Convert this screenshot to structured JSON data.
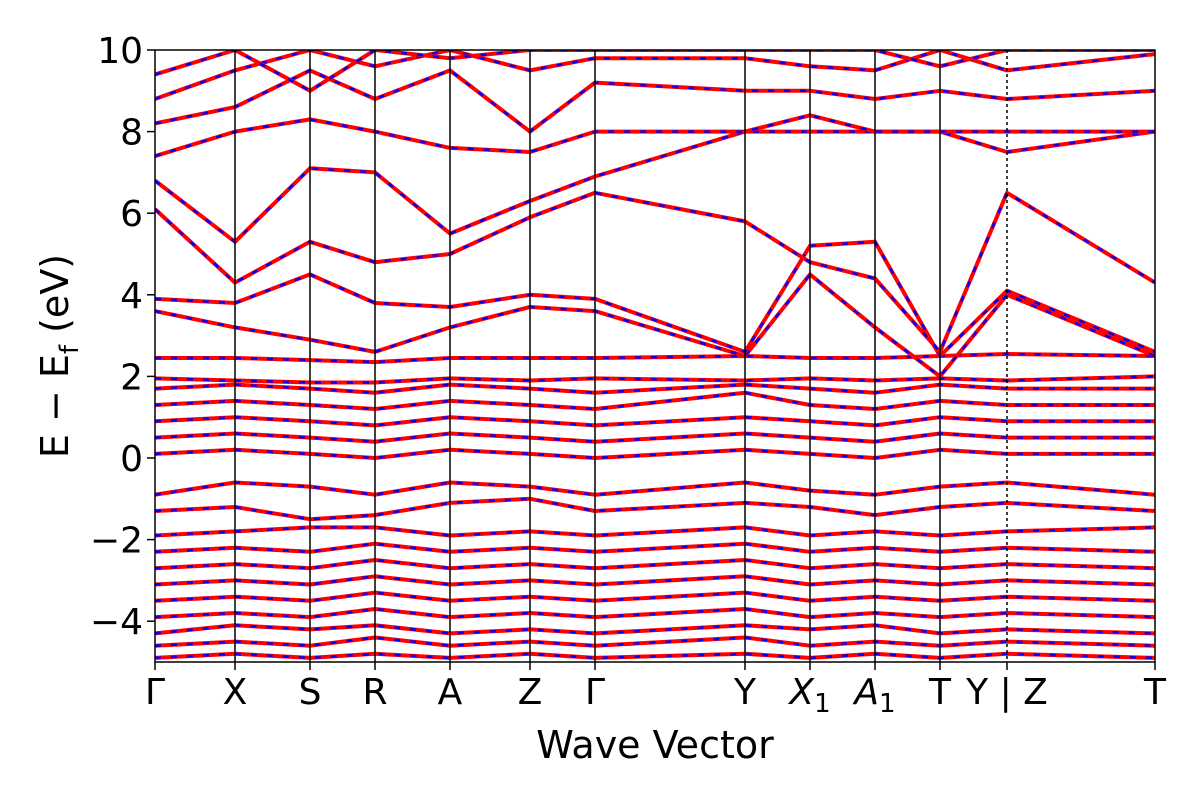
{
  "chart_data": {
    "type": "line",
    "title": "",
    "xlabel": "Wave Vector",
    "ylabel": "E − E",
    "ylabel_sub": "f",
    "ylabel_unit": " (eV)",
    "ylim": [
      -5,
      10
    ],
    "yticks": [
      -4,
      -2,
      0,
      2,
      4,
      6,
      8,
      10
    ],
    "ytick_labels": [
      "−4",
      "−2",
      "0",
      "2",
      "4",
      "6",
      "8",
      "10"
    ],
    "kpath": {
      "labels": [
        "Γ",
        "X",
        "S",
        "R",
        "A",
        "Z",
        "Γ",
        "Y",
        "X",
        "A",
        "T",
        "Y | Z",
        "T"
      ],
      "label_subscripts": [
        "",
        "",
        "",
        "",
        "",
        "",
        "",
        "",
        "1",
        "1",
        "",
        "",
        ""
      ],
      "label_italic": [
        false,
        false,
        false,
        false,
        false,
        false,
        false,
        false,
        true,
        true,
        false,
        false,
        false
      ],
      "positions": [
        0,
        0.08,
        0.155,
        0.22,
        0.295,
        0.375,
        0.44,
        0.59,
        0.655,
        0.72,
        0.785,
        0.852,
        1.0
      ]
    },
    "grid": false,
    "legend": "none",
    "series": [
      {
        "color": "#ff0000",
        "style": "solid"
      },
      {
        "color": "#0000ff",
        "style": "dashed"
      }
    ],
    "bands": [
      [
        [
          0,
          -4.9
        ],
        [
          0.08,
          -4.8
        ],
        [
          0.155,
          -4.9
        ],
        [
          0.22,
          -4.8
        ],
        [
          0.295,
          -4.9
        ],
        [
          0.375,
          -4.8
        ],
        [
          0.44,
          -4.9
        ],
        [
          0.59,
          -4.8
        ],
        [
          0.655,
          -4.9
        ],
        [
          0.72,
          -4.8
        ],
        [
          0.785,
          -4.9
        ],
        [
          0.852,
          -4.8
        ],
        [
          1.0,
          -4.9
        ]
      ],
      [
        [
          0,
          -4.6
        ],
        [
          0.08,
          -4.5
        ],
        [
          0.155,
          -4.6
        ],
        [
          0.22,
          -4.4
        ],
        [
          0.295,
          -4.6
        ],
        [
          0.375,
          -4.5
        ],
        [
          0.44,
          -4.6
        ],
        [
          0.59,
          -4.4
        ],
        [
          0.655,
          -4.6
        ],
        [
          0.72,
          -4.5
        ],
        [
          0.785,
          -4.6
        ],
        [
          0.852,
          -4.5
        ],
        [
          1.0,
          -4.6
        ]
      ],
      [
        [
          0,
          -4.3
        ],
        [
          0.08,
          -4.1
        ],
        [
          0.155,
          -4.2
        ],
        [
          0.22,
          -4.1
        ],
        [
          0.295,
          -4.3
        ],
        [
          0.375,
          -4.2
        ],
        [
          0.44,
          -4.3
        ],
        [
          0.59,
          -4.1
        ],
        [
          0.655,
          -4.2
        ],
        [
          0.72,
          -4.1
        ],
        [
          0.785,
          -4.3
        ],
        [
          0.852,
          -4.2
        ],
        [
          1.0,
          -4.3
        ]
      ],
      [
        [
          0,
          -3.9
        ],
        [
          0.08,
          -3.8
        ],
        [
          0.155,
          -3.9
        ],
        [
          0.22,
          -3.7
        ],
        [
          0.295,
          -3.9
        ],
        [
          0.375,
          -3.8
        ],
        [
          0.44,
          -3.9
        ],
        [
          0.59,
          -3.7
        ],
        [
          0.655,
          -3.9
        ],
        [
          0.72,
          -3.8
        ],
        [
          0.785,
          -3.9
        ],
        [
          0.852,
          -3.8
        ],
        [
          1.0,
          -3.9
        ]
      ],
      [
        [
          0,
          -3.5
        ],
        [
          0.08,
          -3.4
        ],
        [
          0.155,
          -3.5
        ],
        [
          0.22,
          -3.3
        ],
        [
          0.295,
          -3.5
        ],
        [
          0.375,
          -3.4
        ],
        [
          0.44,
          -3.5
        ],
        [
          0.59,
          -3.3
        ],
        [
          0.655,
          -3.5
        ],
        [
          0.72,
          -3.4
        ],
        [
          0.785,
          -3.5
        ],
        [
          0.852,
          -3.4
        ],
        [
          1.0,
          -3.5
        ]
      ],
      [
        [
          0,
          -3.1
        ],
        [
          0.08,
          -3.0
        ],
        [
          0.155,
          -3.1
        ],
        [
          0.22,
          -2.9
        ],
        [
          0.295,
          -3.1
        ],
        [
          0.375,
          -3.0
        ],
        [
          0.44,
          -3.1
        ],
        [
          0.59,
          -2.9
        ],
        [
          0.655,
          -3.1
        ],
        [
          0.72,
          -3.0
        ],
        [
          0.785,
          -3.1
        ],
        [
          0.852,
          -3.0
        ],
        [
          1.0,
          -3.1
        ]
      ],
      [
        [
          0,
          -2.7
        ],
        [
          0.08,
          -2.6
        ],
        [
          0.155,
          -2.7
        ],
        [
          0.22,
          -2.5
        ],
        [
          0.295,
          -2.7
        ],
        [
          0.375,
          -2.6
        ],
        [
          0.44,
          -2.7
        ],
        [
          0.59,
          -2.5
        ],
        [
          0.655,
          -2.7
        ],
        [
          0.72,
          -2.6
        ],
        [
          0.785,
          -2.7
        ],
        [
          0.852,
          -2.6
        ],
        [
          1.0,
          -2.7
        ]
      ],
      [
        [
          0,
          -2.3
        ],
        [
          0.08,
          -2.2
        ],
        [
          0.155,
          -2.3
        ],
        [
          0.22,
          -2.1
        ],
        [
          0.295,
          -2.3
        ],
        [
          0.375,
          -2.2
        ],
        [
          0.44,
          -2.3
        ],
        [
          0.59,
          -2.1
        ],
        [
          0.655,
          -2.3
        ],
        [
          0.72,
          -2.2
        ],
        [
          0.785,
          -2.3
        ],
        [
          0.852,
          -2.2
        ],
        [
          1.0,
          -2.3
        ]
      ],
      [
        [
          0,
          -1.9
        ],
        [
          0.08,
          -1.8
        ],
        [
          0.155,
          -1.7
        ],
        [
          0.22,
          -1.7
        ],
        [
          0.295,
          -1.9
        ],
        [
          0.375,
          -1.8
        ],
        [
          0.44,
          -1.9
        ],
        [
          0.59,
          -1.7
        ],
        [
          0.655,
          -1.9
        ],
        [
          0.72,
          -1.8
        ],
        [
          0.785,
          -1.9
        ],
        [
          0.852,
          -1.8
        ],
        [
          1.0,
          -1.7
        ]
      ],
      [
        [
          0,
          -1.3
        ],
        [
          0.08,
          -1.2
        ],
        [
          0.155,
          -1.5
        ],
        [
          0.22,
          -1.4
        ],
        [
          0.295,
          -1.1
        ],
        [
          0.375,
          -1.0
        ],
        [
          0.44,
          -1.3
        ],
        [
          0.59,
          -1.1
        ],
        [
          0.655,
          -1.2
        ],
        [
          0.72,
          -1.4
        ],
        [
          0.785,
          -1.2
        ],
        [
          0.852,
          -1.1
        ],
        [
          1.0,
          -1.3
        ]
      ],
      [
        [
          0,
          -0.9
        ],
        [
          0.08,
          -0.6
        ],
        [
          0.155,
          -0.7
        ],
        [
          0.22,
          -0.9
        ],
        [
          0.295,
          -0.6
        ],
        [
          0.375,
          -0.7
        ],
        [
          0.44,
          -0.9
        ],
        [
          0.59,
          -0.6
        ],
        [
          0.655,
          -0.8
        ],
        [
          0.72,
          -0.9
        ],
        [
          0.785,
          -0.7
        ],
        [
          0.852,
          -0.6
        ],
        [
          1.0,
          -0.9
        ]
      ],
      [
        [
          0,
          0.1
        ],
        [
          0.08,
          0.2
        ],
        [
          0.155,
          0.1
        ],
        [
          0.22,
          0.0
        ],
        [
          0.295,
          0.2
        ],
        [
          0.375,
          0.1
        ],
        [
          0.44,
          0.0
        ],
        [
          0.59,
          0.2
        ],
        [
          0.655,
          0.1
        ],
        [
          0.72,
          0.0
        ],
        [
          0.785,
          0.2
        ],
        [
          0.852,
          0.1
        ],
        [
          1.0,
          0.1
        ]
      ],
      [
        [
          0,
          0.5
        ],
        [
          0.08,
          0.6
        ],
        [
          0.155,
          0.5
        ],
        [
          0.22,
          0.4
        ],
        [
          0.295,
          0.6
        ],
        [
          0.375,
          0.5
        ],
        [
          0.44,
          0.4
        ],
        [
          0.59,
          0.6
        ],
        [
          0.655,
          0.5
        ],
        [
          0.72,
          0.4
        ],
        [
          0.785,
          0.6
        ],
        [
          0.852,
          0.5
        ],
        [
          1.0,
          0.5
        ]
      ],
      [
        [
          0,
          0.9
        ],
        [
          0.08,
          1.0
        ],
        [
          0.155,
          0.9
        ],
        [
          0.22,
          0.8
        ],
        [
          0.295,
          1.0
        ],
        [
          0.375,
          0.9
        ],
        [
          0.44,
          0.8
        ],
        [
          0.59,
          1.0
        ],
        [
          0.655,
          0.9
        ],
        [
          0.72,
          0.8
        ],
        [
          0.785,
          1.0
        ],
        [
          0.852,
          0.9
        ],
        [
          1.0,
          0.9
        ]
      ],
      [
        [
          0,
          1.3
        ],
        [
          0.08,
          1.4
        ],
        [
          0.155,
          1.3
        ],
        [
          0.22,
          1.2
        ],
        [
          0.295,
          1.4
        ],
        [
          0.375,
          1.3
        ],
        [
          0.44,
          1.2
        ],
        [
          0.59,
          1.6
        ],
        [
          0.655,
          1.3
        ],
        [
          0.72,
          1.2
        ],
        [
          0.785,
          1.4
        ],
        [
          0.852,
          1.3
        ],
        [
          1.0,
          1.3
        ]
      ],
      [
        [
          0,
          1.7
        ],
        [
          0.08,
          1.8
        ],
        [
          0.155,
          1.7
        ],
        [
          0.22,
          1.6
        ],
        [
          0.295,
          1.8
        ],
        [
          0.375,
          1.7
        ],
        [
          0.44,
          1.6
        ],
        [
          0.59,
          1.8
        ],
        [
          0.655,
          1.7
        ],
        [
          0.72,
          1.6
        ],
        [
          0.785,
          1.8
        ],
        [
          0.852,
          1.7
        ],
        [
          1.0,
          1.7
        ]
      ],
      [
        [
          0,
          1.95
        ],
        [
          0.08,
          1.9
        ],
        [
          0.155,
          1.85
        ],
        [
          0.22,
          1.85
        ],
        [
          0.295,
          1.95
        ],
        [
          0.375,
          1.9
        ],
        [
          0.44,
          1.95
        ],
        [
          0.59,
          1.9
        ],
        [
          0.655,
          1.95
        ],
        [
          0.72,
          1.9
        ],
        [
          0.785,
          1.95
        ],
        [
          0.852,
          1.9
        ],
        [
          1.0,
          2.0
        ]
      ],
      [
        [
          0,
          2.45
        ],
        [
          0.08,
          2.45
        ],
        [
          0.155,
          2.4
        ],
        [
          0.22,
          2.35
        ],
        [
          0.295,
          2.45
        ],
        [
          0.375,
          2.45
        ],
        [
          0.44,
          2.45
        ],
        [
          0.59,
          2.5
        ],
        [
          0.655,
          2.45
        ],
        [
          0.72,
          2.45
        ],
        [
          0.785,
          2.5
        ],
        [
          0.852,
          2.55
        ],
        [
          1.0,
          2.5
        ]
      ],
      [
        [
          0,
          3.6
        ],
        [
          0.08,
          3.2
        ],
        [
          0.155,
          2.9
        ],
        [
          0.22,
          2.6
        ],
        [
          0.295,
          3.2
        ],
        [
          0.375,
          3.7
        ],
        [
          0.44,
          3.6
        ],
        [
          0.59,
          2.5
        ],
        [
          0.655,
          4.5
        ],
        [
          0.72,
          3.2
        ],
        [
          0.785,
          2.0
        ],
        [
          0.852,
          4.0
        ],
        [
          1.0,
          2.5
        ]
      ],
      [
        [
          0,
          3.9
        ],
        [
          0.08,
          3.8
        ],
        [
          0.155,
          4.5
        ],
        [
          0.22,
          3.8
        ],
        [
          0.295,
          3.7
        ],
        [
          0.375,
          4.0
        ],
        [
          0.44,
          3.9
        ],
        [
          0.59,
          2.6
        ],
        [
          0.655,
          5.2
        ],
        [
          0.72,
          5.3
        ],
        [
          0.785,
          2.5
        ],
        [
          0.852,
          4.1
        ],
        [
          1.0,
          2.6
        ]
      ],
      [
        [
          0,
          6.1
        ],
        [
          0.08,
          4.3
        ],
        [
          0.155,
          5.3
        ],
        [
          0.22,
          4.8
        ],
        [
          0.295,
          5.0
        ],
        [
          0.375,
          5.9
        ],
        [
          0.44,
          6.5
        ],
        [
          0.59,
          5.8
        ],
        [
          0.655,
          4.8
        ],
        [
          0.72,
          4.4
        ],
        [
          0.785,
          2.6
        ],
        [
          0.852,
          6.5
        ],
        [
          1.0,
          4.3
        ]
      ],
      [
        [
          0,
          6.8
        ],
        [
          0.08,
          5.3
        ],
        [
          0.155,
          7.1
        ],
        [
          0.22,
          7.0
        ],
        [
          0.295,
          5.5
        ],
        [
          0.375,
          6.3
        ],
        [
          0.44,
          6.9
        ],
        [
          0.59,
          8.0
        ],
        [
          0.655,
          8.0
        ],
        [
          0.72,
          8.0
        ],
        [
          0.785,
          8.0
        ],
        [
          0.852,
          7.5
        ],
        [
          1.0,
          8.0
        ]
      ],
      [
        [
          0,
          7.4
        ],
        [
          0.08,
          8.0
        ],
        [
          0.155,
          8.3
        ],
        [
          0.22,
          8.0
        ],
        [
          0.295,
          7.6
        ],
        [
          0.375,
          7.5
        ],
        [
          0.44,
          8.0
        ],
        [
          0.59,
          8.0
        ],
        [
          0.655,
          8.4
        ],
        [
          0.72,
          8.0
        ],
        [
          0.785,
          8.0
        ],
        [
          0.852,
          8.0
        ],
        [
          1.0,
          8.0
        ]
      ],
      [
        [
          0,
          8.2
        ],
        [
          0.08,
          8.6
        ],
        [
          0.155,
          9.5
        ],
        [
          0.22,
          8.8
        ],
        [
          0.295,
          9.5
        ],
        [
          0.375,
          8.0
        ],
        [
          0.44,
          9.2
        ],
        [
          0.59,
          9.0
        ],
        [
          0.655,
          9.0
        ],
        [
          0.72,
          8.8
        ],
        [
          0.785,
          9.0
        ],
        [
          0.852,
          8.8
        ],
        [
          1.0,
          9.0
        ]
      ],
      [
        [
          0,
          8.8
        ],
        [
          0.08,
          9.5
        ],
        [
          0.155,
          10.0
        ],
        [
          0.22,
          9.6
        ],
        [
          0.295,
          10.0
        ],
        [
          0.375,
          9.5
        ],
        [
          0.44,
          9.8
        ],
        [
          0.59,
          9.8
        ],
        [
          0.655,
          9.6
        ],
        [
          0.72,
          9.5
        ],
        [
          0.785,
          10.0
        ],
        [
          0.852,
          9.5
        ],
        [
          1.0,
          9.9
        ]
      ],
      [
        [
          0,
          9.4
        ],
        [
          0.08,
          10.0
        ],
        [
          0.155,
          9.0
        ],
        [
          0.22,
          10.0
        ],
        [
          0.295,
          9.8
        ],
        [
          0.375,
          10.0
        ],
        [
          0.44,
          10.0
        ],
        [
          0.59,
          10.0
        ],
        [
          0.655,
          10.0
        ],
        [
          0.72,
          10.0
        ],
        [
          0.785,
          9.6
        ],
        [
          0.852,
          10.0
        ],
        [
          1.0,
          10.0
        ]
      ]
    ]
  }
}
